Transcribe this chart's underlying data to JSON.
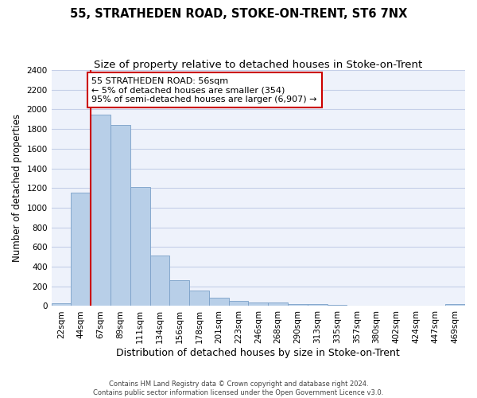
{
  "title": "55, STRATHEDEN ROAD, STOKE-ON-TRENT, ST6 7NX",
  "subtitle": "Size of property relative to detached houses in Stoke-on-Trent",
  "xlabel": "Distribution of detached houses by size in Stoke-on-Trent",
  "ylabel": "Number of detached properties",
  "categories": [
    "22sqm",
    "44sqm",
    "67sqm",
    "89sqm",
    "111sqm",
    "134sqm",
    "156sqm",
    "178sqm",
    "201sqm",
    "223sqm",
    "246sqm",
    "268sqm",
    "290sqm",
    "313sqm",
    "335sqm",
    "357sqm",
    "380sqm",
    "402sqm",
    "424sqm",
    "447sqm",
    "469sqm"
  ],
  "values": [
    30,
    1150,
    1950,
    1840,
    1210,
    515,
    265,
    155,
    85,
    50,
    40,
    40,
    20,
    20,
    15,
    5,
    5,
    5,
    5,
    5,
    20
  ],
  "bar_color": "#b8cfe8",
  "bar_edge_color": "#7aa0c8",
  "vline_color": "#cc0000",
  "vline_x": 1.5,
  "annotation_line1": "55 STRATHEDEN ROAD: 56sqm",
  "annotation_line2": "← 5% of detached houses are smaller (354)",
  "annotation_line3": "95% of semi-detached houses are larger (6,907) →",
  "annotation_box_color": "#cc0000",
  "annotation_fontsize": 8,
  "ylim": [
    0,
    2400
  ],
  "yticks": [
    0,
    200,
    400,
    600,
    800,
    1000,
    1200,
    1400,
    1600,
    1800,
    2000,
    2200,
    2400
  ],
  "title_fontsize": 10.5,
  "subtitle_fontsize": 9.5,
  "xlabel_fontsize": 9,
  "ylabel_fontsize": 8.5,
  "tick_fontsize": 7.5,
  "footer_line1": "Contains HM Land Registry data © Crown copyright and database right 2024.",
  "footer_line2": "Contains public sector information licensed under the Open Government Licence v3.0.",
  "background_color": "#eef2fb",
  "grid_color": "#c5cfe8",
  "figure_bg": "#ffffff"
}
